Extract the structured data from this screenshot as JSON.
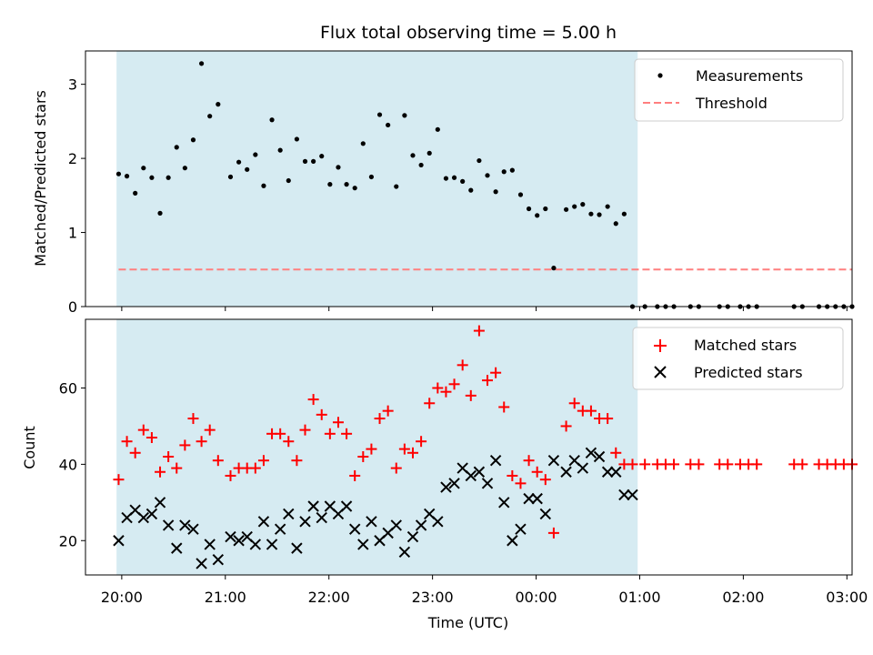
{
  "chart_data": [
    {
      "type": "scatter",
      "title": "Flux total observing time = 5.00 h",
      "xlabel": "",
      "ylabel": "Matched/Predicted stars",
      "ylim": [
        0,
        3.45
      ],
      "yticks": [
        0,
        1,
        2,
        3
      ],
      "xlim_hours": [
        19.65,
        27.05
      ],
      "shaded_region_hours": [
        19.95,
        24.98
      ],
      "shade_color": "#add8e6",
      "legend_position": "top-right",
      "series": [
        {
          "name": "Measurements",
          "kind": "points",
          "color": "#000000",
          "x": [
            19.97,
            20.05,
            20.13,
            20.21,
            20.29,
            20.37,
            20.45,
            20.53,
            20.61,
            20.69,
            20.77,
            20.85,
            20.93,
            21.05,
            21.13,
            21.21,
            21.29,
            21.37,
            21.45,
            21.53,
            21.61,
            21.69,
            21.77,
            21.85,
            21.93,
            22.01,
            22.09,
            22.17,
            22.25,
            22.33,
            22.41,
            22.49,
            22.57,
            22.65,
            22.73,
            22.81,
            22.89,
            22.97,
            23.05,
            23.13,
            23.21,
            23.29,
            23.37,
            23.45,
            23.53,
            23.61,
            23.69,
            23.77,
            23.85,
            23.93,
            24.01,
            24.09,
            24.17,
            24.29,
            24.37,
            24.45,
            24.53,
            24.61,
            24.69,
            24.77,
            24.85,
            24.93,
            25.05,
            25.17,
            25.25,
            25.33,
            25.49,
            25.57,
            25.77,
            25.85,
            25.97,
            26.05,
            26.13,
            26.49,
            26.57,
            26.73,
            26.81,
            26.89,
            26.97,
            27.05
          ],
          "y": [
            1.79,
            1.76,
            1.53,
            1.87,
            1.74,
            1.26,
            1.74,
            2.15,
            1.87,
            2.25,
            3.28,
            2.57,
            2.73,
            1.75,
            1.95,
            1.85,
            2.05,
            1.63,
            2.52,
            2.11,
            1.7,
            2.26,
            1.96,
            1.96,
            2.03,
            1.65,
            1.88,
            1.65,
            1.6,
            2.2,
            1.75,
            2.59,
            2.45,
            1.62,
            2.58,
            2.04,
            1.91,
            2.07,
            2.39,
            1.73,
            1.74,
            1.69,
            1.57,
            1.97,
            1.77,
            1.55,
            1.82,
            1.84,
            1.51,
            1.32,
            1.23,
            1.32,
            0.52,
            1.31,
            1.35,
            1.38,
            1.25,
            1.24,
            1.35,
            1.12,
            1.25,
            0,
            0,
            0,
            0,
            0,
            0,
            0,
            0,
            0,
            0,
            0,
            0,
            0,
            0,
            0,
            0,
            0,
            0,
            0
          ]
        },
        {
          "name": "Threshold",
          "kind": "dashed-line",
          "color": "#ff7f7f",
          "x": [
            19.97,
            27.05
          ],
          "y": [
            0.5,
            0.5
          ]
        }
      ]
    },
    {
      "type": "scatter",
      "title": "",
      "xlabel": "Time (UTC)",
      "ylabel": "Count",
      "ylim": [
        11,
        78
      ],
      "yticks": [
        20,
        40,
        60
      ],
      "xlim_hours": [
        19.65,
        27.05
      ],
      "shaded_region_hours": [
        19.95,
        24.98
      ],
      "shade_color": "#add8e6",
      "xticks": [
        "20:00",
        "21:00",
        "22:00",
        "23:00",
        "00:00",
        "01:00",
        "02:00",
        "03:00"
      ],
      "xtick_hours": [
        20,
        21,
        22,
        23,
        24,
        25,
        26,
        27
      ],
      "legend_position": "top-right",
      "series": [
        {
          "name": "Matched stars",
          "kind": "plus",
          "color": "#ff0000",
          "x": [
            19.97,
            20.05,
            20.13,
            20.21,
            20.29,
            20.37,
            20.45,
            20.53,
            20.61,
            20.69,
            20.77,
            20.85,
            20.93,
            21.05,
            21.13,
            21.21,
            21.29,
            21.37,
            21.45,
            21.53,
            21.61,
            21.69,
            21.77,
            21.85,
            21.93,
            22.01,
            22.09,
            22.17,
            22.25,
            22.33,
            22.41,
            22.49,
            22.57,
            22.65,
            22.73,
            22.81,
            22.89,
            22.97,
            23.05,
            23.13,
            23.21,
            23.29,
            23.37,
            23.45,
            23.53,
            23.61,
            23.69,
            23.77,
            23.85,
            23.93,
            24.01,
            24.09,
            24.17,
            24.29,
            24.37,
            24.45,
            24.53,
            24.61,
            24.69,
            24.77,
            24.85,
            24.93,
            25.05,
            25.17,
            25.25,
            25.33,
            25.49,
            25.57,
            25.77,
            25.85,
            25.97,
            26.05,
            26.13,
            26.49,
            26.57,
            26.73,
            26.81,
            26.89,
            26.97,
            27.05
          ],
          "y": [
            36,
            46,
            43,
            49,
            47,
            38,
            42,
            39,
            45,
            52,
            46,
            49,
            41,
            37,
            39,
            39,
            39,
            41,
            48,
            48,
            46,
            41,
            49,
            57,
            53,
            48,
            51,
            48,
            37,
            42,
            44,
            52,
            54,
            39,
            44,
            43,
            46,
            56,
            60,
            59,
            61,
            66,
            58,
            75,
            62,
            64,
            55,
            37,
            35,
            41,
            38,
            36,
            22,
            50,
            56,
            54,
            54,
            52,
            52,
            43,
            40,
            40,
            40,
            40,
            40,
            40,
            40,
            40,
            40,
            40,
            40,
            40,
            40,
            40,
            40,
            40,
            40,
            40,
            40,
            40
          ]
        },
        {
          "name": "Predicted stars",
          "kind": "x",
          "color": "#000000",
          "x": [
            19.97,
            20.05,
            20.13,
            20.21,
            20.29,
            20.37,
            20.45,
            20.53,
            20.61,
            20.69,
            20.77,
            20.85,
            20.93,
            21.05,
            21.13,
            21.21,
            21.29,
            21.37,
            21.45,
            21.53,
            21.61,
            21.69,
            21.77,
            21.85,
            21.93,
            22.01,
            22.09,
            22.17,
            22.25,
            22.33,
            22.41,
            22.49,
            22.57,
            22.65,
            22.73,
            22.81,
            22.89,
            22.97,
            23.05,
            23.13,
            23.21,
            23.29,
            23.37,
            23.45,
            23.53,
            23.61,
            23.69,
            23.77,
            23.85,
            23.93,
            24.01,
            24.09,
            24.17,
            24.29,
            24.37,
            24.45,
            24.53,
            24.61,
            24.69,
            24.77,
            24.85,
            24.93
          ],
          "y": [
            20,
            26,
            28,
            26,
            27,
            30,
            24,
            18,
            24,
            23,
            14,
            19,
            15,
            21,
            20,
            21,
            19,
            25,
            19,
            23,
            27,
            18,
            25,
            29,
            26,
            29,
            27,
            29,
            23,
            19,
            25,
            20,
            22,
            24,
            17,
            21,
            24,
            27,
            25,
            34,
            35,
            39,
            37,
            38,
            35,
            41,
            30,
            20,
            23,
            31,
            31,
            27,
            41,
            38,
            41,
            39,
            43,
            42,
            38,
            38,
            32,
            32
          ]
        }
      ]
    }
  ]
}
